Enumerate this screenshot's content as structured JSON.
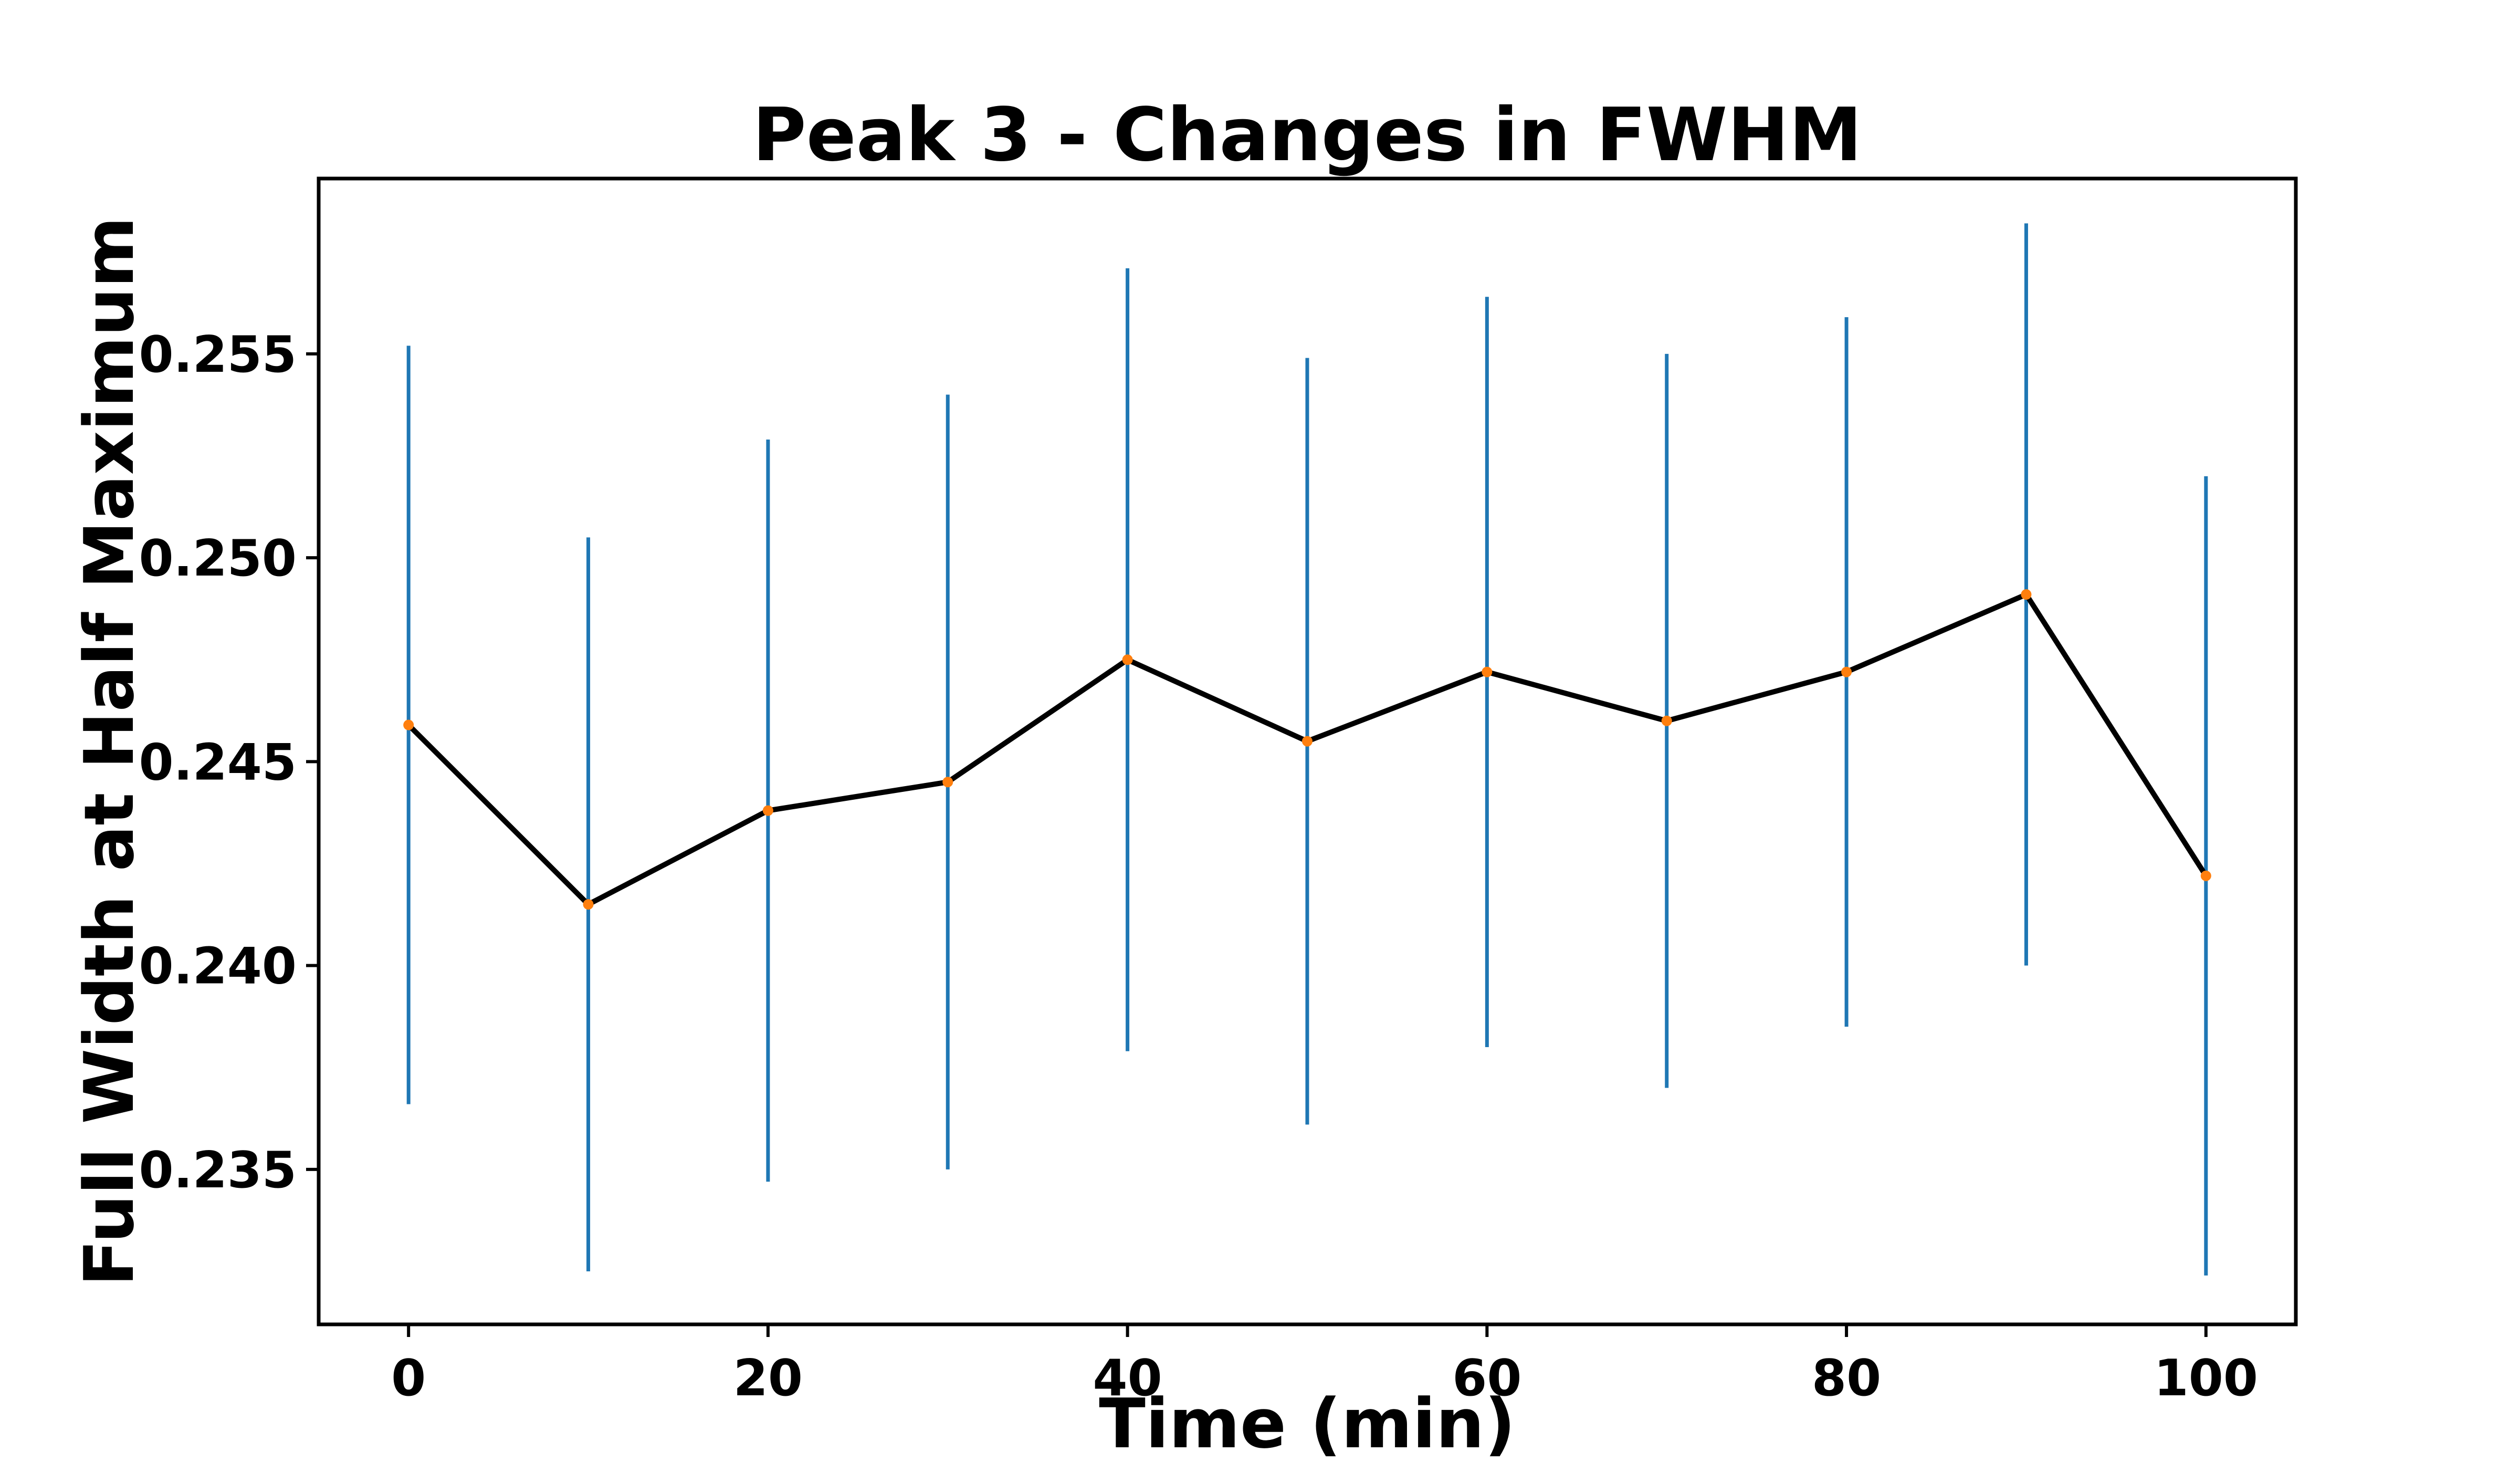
{
  "chart_data": {
    "type": "line",
    "title": "Peak 3 - Changes in FWHM",
    "xlabel": "Time (min)",
    "ylabel": "Full Width at Half Maximum",
    "xlim": [
      -5,
      105
    ],
    "ylim": [
      0.2312,
      0.2593
    ],
    "xticks": [
      0,
      20,
      40,
      60,
      80,
      100
    ],
    "xtick_labels": [
      "0",
      "20",
      "40",
      "60",
      "80",
      "100"
    ],
    "yticks": [
      0.235,
      0.24,
      0.245,
      0.25,
      0.255
    ],
    "ytick_labels": [
      "0.235",
      "0.240",
      "0.245",
      "0.250",
      "0.255"
    ],
    "grid": false,
    "legend": "none",
    "series": [
      {
        "x": [
          0,
          10,
          20,
          30,
          40,
          50,
          60,
          70,
          80,
          90,
          100
        ],
        "y": [
          0.2459,
          0.2415,
          0.2438,
          0.2445,
          0.2475,
          0.2455,
          0.2472,
          0.246,
          0.2472,
          0.2491,
          0.2422
        ],
        "yerr": [
          0.0093,
          0.009,
          0.0091,
          0.0095,
          0.0096,
          0.0094,
          0.0092,
          0.009,
          0.0087,
          0.0091,
          0.0098
        ]
      }
    ],
    "colors": {
      "line": "#000000",
      "marker": "#ff7f0e",
      "errorbar": "#1f77b4",
      "axes": "#000000"
    }
  }
}
